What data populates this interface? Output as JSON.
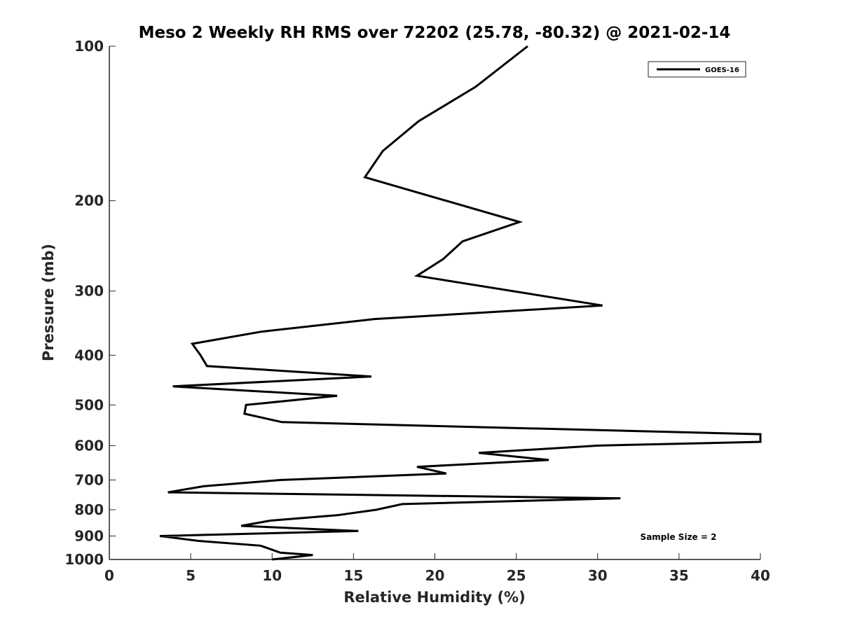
{
  "chart_data": {
    "type": "line",
    "title": "Meso 2 Weekly RH RMS over 72202 (25.78, -80.32) @ 2021-02-14",
    "xlabel": "Relative Humidity (%)",
    "ylabel": "Pressure (mb)",
    "xlim": [
      0,
      40
    ],
    "ylim": [
      100,
      1000
    ],
    "yscale": "log",
    "y_reversed": true,
    "xticks": [
      "0",
      "5",
      "10",
      "15",
      "20",
      "25",
      "30",
      "35",
      "40"
    ],
    "yticks": [
      "100",
      "200",
      "300",
      "400",
      "500",
      "600",
      "700",
      "800",
      "900",
      "1000"
    ],
    "grid": false,
    "legend": {
      "placement": "top-right",
      "entries": [
        "GOES-16"
      ]
    },
    "annotation": "Sample Size = 2",
    "series": [
      {
        "name": "GOES-16",
        "color": "#000000",
        "pressure": [
          100,
          120,
          140,
          160,
          180,
          220,
          240,
          260,
          280,
          320,
          340,
          360,
          380,
          400,
          420,
          440,
          460,
          480,
          500,
          520,
          540,
          570,
          590,
          600,
          620,
          640,
          660,
          680,
          700,
          720,
          740,
          760,
          780,
          800,
          820,
          840,
          860,
          880,
          900,
          920,
          940,
          970,
          980,
          1000
        ],
        "values": [
          25.7,
          22.5,
          19.0,
          16.8,
          15.7,
          25.2,
          21.7,
          20.5,
          18.9,
          30.3,
          16.3,
          9.3,
          5.1,
          5.6,
          6.0,
          16.1,
          3.9,
          14.0,
          8.4,
          8.3,
          10.6,
          40.0,
          40.0,
          30.0,
          22.7,
          27.0,
          18.9,
          20.7,
          10.5,
          5.8,
          3.6,
          31.4,
          18.0,
          16.4,
          14.0,
          9.9,
          8.1,
          15.3,
          3.1,
          5.5,
          9.3,
          10.5,
          12.5,
          10.0
        ]
      }
    ]
  }
}
